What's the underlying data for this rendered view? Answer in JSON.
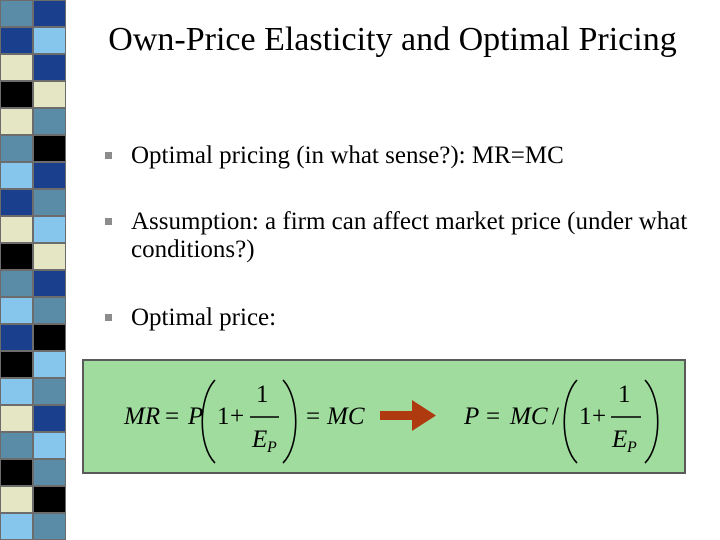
{
  "slide": {
    "title": "Own-Price Elasticity and Optimal Pricing",
    "bullets": [
      {
        "text": "Optimal pricing (in what sense?): MR=MC"
      },
      {
        "text": "Assumption: a firm can affect market price (under what conditions?)"
      },
      {
        "text": "Optimal price:"
      }
    ],
    "bullet_icon": "square-bullet-icon",
    "arrow_icon": "right-arrow-icon",
    "colors": {
      "formula_box_background": "#a0dc9e",
      "arrow": "#b03a10",
      "bullet": "#8c8c8c",
      "sidebar_tiles": [
        "#5a8ca8",
        "#1a3f8c",
        "#e4e6c4",
        "#000000",
        "#87c6ec"
      ]
    },
    "formula": {
      "left": {
        "lhs": "MR",
        "eq1": "=",
        "factor": "P",
        "one": "1",
        "plus": "+",
        "numerator": "1",
        "denominator": "E",
        "subscript": "P",
        "eq2": "=",
        "rhs": "MC"
      },
      "right": {
        "lhs": "P",
        "eq1": "=",
        "factor": "MC",
        "divide": "/",
        "one": "1",
        "plus": "+",
        "numerator": "1",
        "denominator": "E",
        "subscript": "P"
      }
    }
  }
}
